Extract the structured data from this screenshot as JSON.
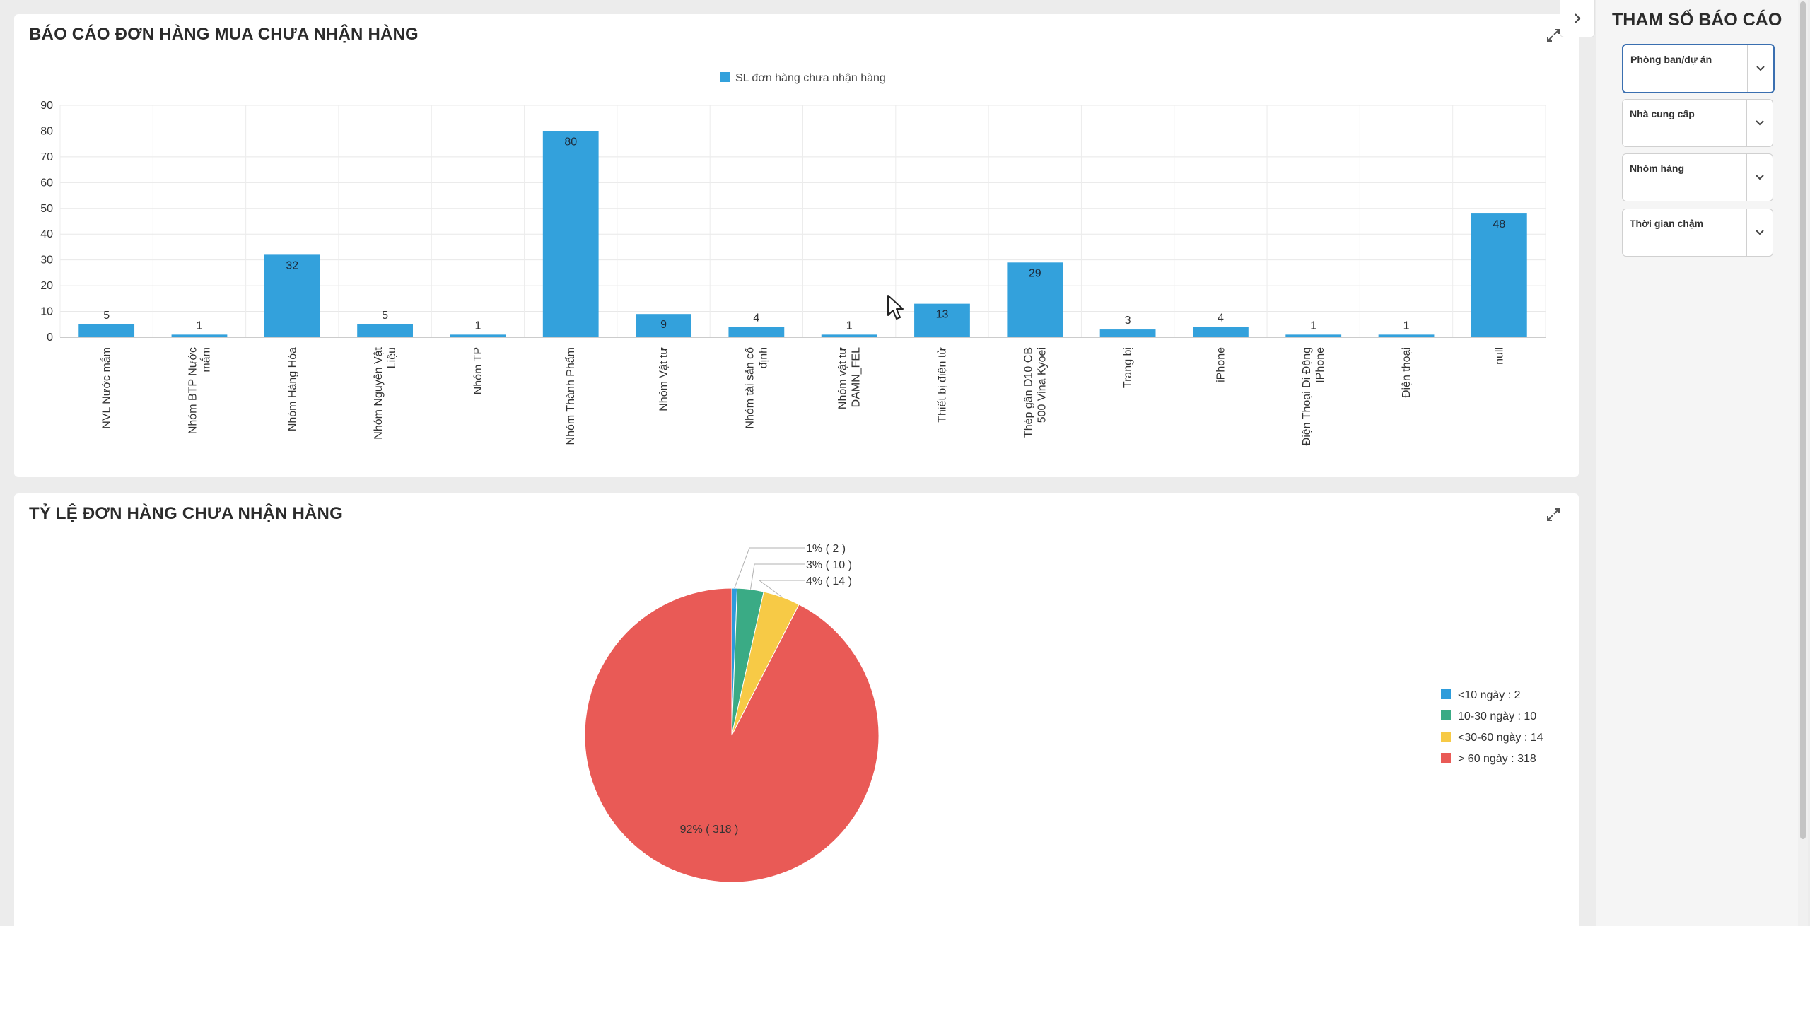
{
  "bar_card": {
    "title": "BÁO CÁO ĐƠN HÀNG MUA CHƯA NHẬN HÀNG"
  },
  "pie_card": {
    "title": "TỶ LỆ ĐƠN HÀNG CHƯA NHẬN HÀNG"
  },
  "panel": {
    "title": "THAM SỐ BÁO CÁO",
    "params": [
      {
        "label": "Phòng ban/dự án"
      },
      {
        "label": "Nhà cung cấp"
      },
      {
        "label": "Nhóm hàng"
      },
      {
        "label": "Thời gian chậm"
      }
    ]
  },
  "colors": {
    "bar": "#33a1dc",
    "slice_lt10": "#2d9cdb",
    "slice_10_30": "#3aab85",
    "slice_30_60": "#f7ca46",
    "slice_gt60": "#e95a56"
  },
  "chart_data": [
    {
      "type": "bar",
      "legend": "SL đơn hàng chưa nhận hàng",
      "legend_position": "top-center",
      "ylim": [
        0,
        90
      ],
      "yticks": [
        0,
        10,
        20,
        30,
        40,
        50,
        60,
        70,
        80,
        90
      ],
      "grid": true,
      "categories": [
        [
          "NVL Nước mắm"
        ],
        [
          "Nhóm BTP Nước",
          "mắm"
        ],
        [
          "Nhóm Hàng Hóa"
        ],
        [
          "Nhóm Nguyên Vật",
          "Liệu"
        ],
        [
          "Nhóm TP"
        ],
        [
          "Nhóm Thành Phẩm"
        ],
        [
          "Nhóm Vật tư"
        ],
        [
          "Nhóm tài sản cố",
          "định"
        ],
        [
          "Nhóm vật tư",
          "DAMN_FEL"
        ],
        [
          "Thiết bị điện tử"
        ],
        [
          "Thép gân D10 CB",
          "500 Vina Kyoei"
        ],
        [
          "Trang bị"
        ],
        [
          "iPhone"
        ],
        [
          "Điện Thoại Di Động",
          "IPhone"
        ],
        [
          "Điện thoại"
        ],
        [
          "null"
        ]
      ],
      "values": [
        5,
        1,
        32,
        5,
        1,
        80,
        9,
        4,
        1,
        13,
        29,
        3,
        4,
        1,
        1,
        48
      ],
      "labels": [
        "5",
        "1",
        "32",
        "5",
        "1",
        "80",
        "9",
        "4",
        "1",
        "13",
        "29",
        "3",
        "4",
        "1",
        "1",
        "48"
      ]
    },
    {
      "type": "pie",
      "legend_position": "right",
      "slices": [
        {
          "name": "<10 ngày",
          "value": 2,
          "legend": "<10 ngày : 2",
          "label": "1% ( 2 )",
          "color_key": "slice_lt10"
        },
        {
          "name": "10-30 ngày",
          "value": 10,
          "legend": "10-30 ngày : 10",
          "label": "3% ( 10 )",
          "color_key": "slice_10_30"
        },
        {
          "name": "<30-60 ngày",
          "value": 14,
          "legend": "<30-60 ngày : 14",
          "label": "4% ( 14 )",
          "color_key": "slice_30_60"
        },
        {
          "name": "> 60 ngày",
          "value": 318,
          "legend": "> 60 ngày : 318",
          "label": "92% ( 318 )",
          "color_key": "slice_gt60"
        }
      ]
    }
  ]
}
